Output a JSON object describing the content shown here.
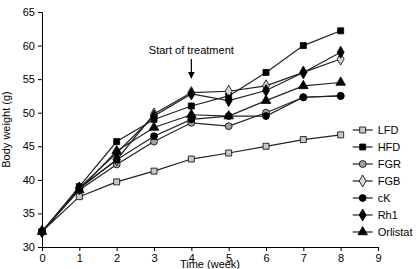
{
  "chart_data": {
    "type": "line",
    "x_label": "Time (week)",
    "y_label": "Body weight (g)",
    "x": [
      0,
      1,
      2,
      3,
      4,
      5,
      6,
      7,
      8
    ],
    "xlim": [
      0,
      9
    ],
    "xticks": [
      0,
      1,
      2,
      3,
      4,
      5,
      6,
      7,
      8,
      9
    ],
    "ylim": [
      30,
      65
    ],
    "yticks": [
      30,
      35,
      40,
      45,
      50,
      55,
      60,
      65
    ],
    "legend": "right",
    "annotations": [
      {
        "text": "Start of treatment",
        "x": 4
      }
    ],
    "series": [
      {
        "name": "LFD",
        "color": "#c8c8c8",
        "marker": "square",
        "values": [
          32.3,
          37.5,
          39.7,
          41.3,
          43.1,
          44.0,
          45.0,
          46.0,
          46.7
        ]
      },
      {
        "name": "HFD",
        "color": "#000000",
        "marker": "square",
        "values": [
          32.3,
          39.0,
          45.7,
          49.0,
          51.0,
          52.5,
          56.0,
          60.0,
          62.2
        ]
      },
      {
        "name": "FGR",
        "color": "#a0a0a0",
        "marker": "circle",
        "values": [
          32.3,
          38.5,
          42.3,
          45.7,
          48.5,
          48.0,
          50.0,
          52.3,
          52.5
        ]
      },
      {
        "name": "FGB",
        "color": "#d8d8d8",
        "marker": "diamond",
        "values": [
          32.3,
          38.7,
          43.0,
          49.8,
          53.0,
          53.2,
          54.0,
          56.0,
          58.0
        ]
      },
      {
        "name": "cK",
        "color": "#000000",
        "marker": "circle",
        "values": [
          32.3,
          38.8,
          43.0,
          46.5,
          49.0,
          49.5,
          49.5,
          52.3,
          52.5
        ]
      },
      {
        "name": "Rh1",
        "color": "#000000",
        "marker": "diamond",
        "values": [
          32.3,
          38.8,
          44.0,
          49.5,
          52.8,
          51.8,
          53.3,
          56.0,
          59.0
        ]
      },
      {
        "name": "Orlistat",
        "color": "#000000",
        "marker": "triangle",
        "values": [
          32.3,
          38.5,
          44.3,
          47.8,
          49.7,
          49.5,
          51.8,
          54.0,
          54.5
        ]
      }
    ]
  }
}
